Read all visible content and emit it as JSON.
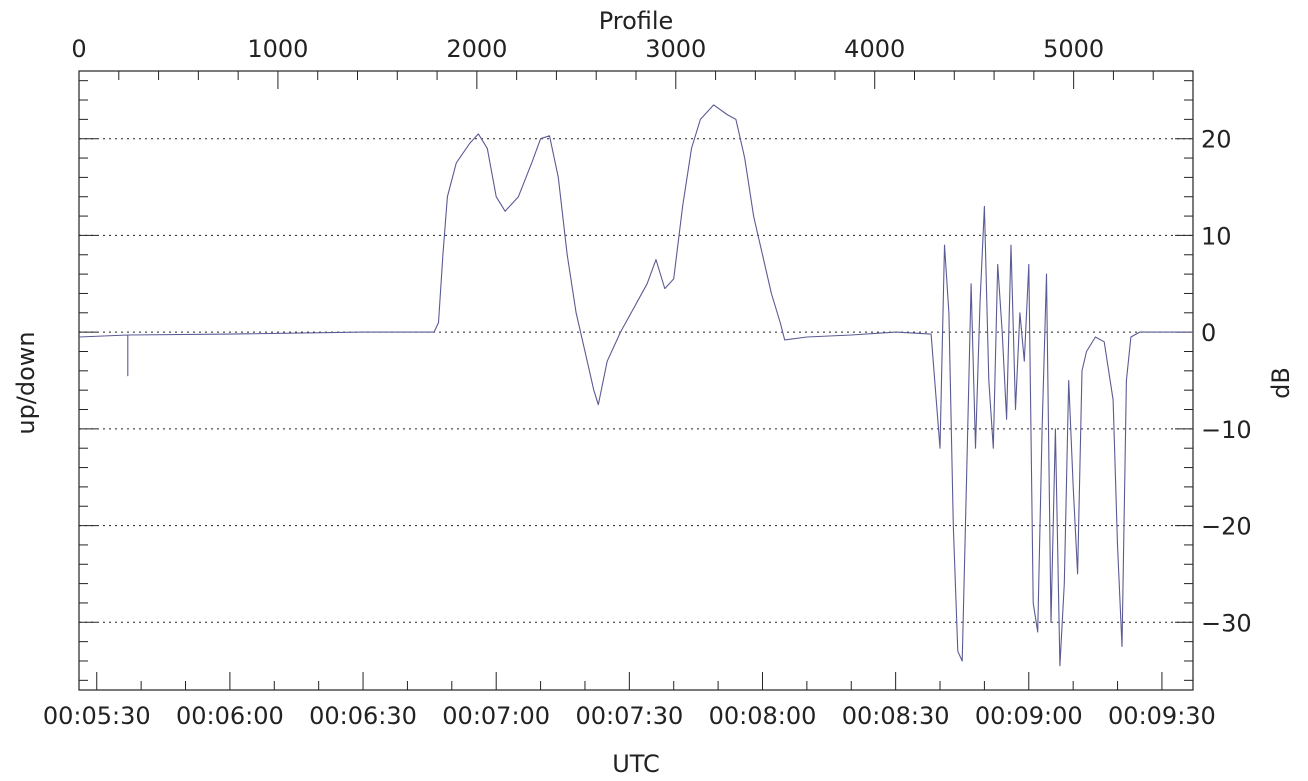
{
  "chart_data": {
    "type": "line",
    "title": "",
    "xlabel": "UTC",
    "ylabel": "up/down",
    "y2label": "dB",
    "top_axis_label": "Profile",
    "top_ticks": [
      "0",
      "1000",
      "2000",
      "3000",
      "4000",
      "5000"
    ],
    "top_xlim": [
      0,
      5600
    ],
    "x_ticks": [
      "00:05:30",
      "00:06:00",
      "00:06:30",
      "00:07:00",
      "00:07:30",
      "00:08:00",
      "00:08:30",
      "00:09:00",
      "00:09:30"
    ],
    "xlim": [
      "00:05:26",
      "00:09:37"
    ],
    "y_ticks": [
      "20",
      "10",
      "0",
      "−10",
      "−20",
      "−30"
    ],
    "ylim": [
      -37,
      27
    ],
    "grid": "horizontal dotted at y ticks",
    "series": [
      {
        "color": "#5b5b94",
        "points": [
          [
            "00:05:26",
            -0.5
          ],
          [
            "00:05:37",
            -0.3
          ],
          [
            "00:05:37",
            -4.5
          ],
          [
            "00:05:37",
            -0.3
          ],
          [
            "00:06:00",
            -0.2
          ],
          [
            "00:06:30",
            0.0
          ],
          [
            "00:06:46",
            0.0
          ],
          [
            "00:06:47",
            1.0
          ],
          [
            "00:06:48",
            8.0
          ],
          [
            "00:06:49",
            14.0
          ],
          [
            "00:06:51",
            17.5
          ],
          [
            "00:06:54",
            19.5
          ],
          [
            "00:06:56",
            20.5
          ],
          [
            "00:06:58",
            19.0
          ],
          [
            "00:07:00",
            14.0
          ],
          [
            "00:07:02",
            12.5
          ],
          [
            "00:07:05",
            14.0
          ],
          [
            "00:07:08",
            17.5
          ],
          [
            "00:07:10",
            20.0
          ],
          [
            "00:07:12",
            20.3
          ],
          [
            "00:07:14",
            16.0
          ],
          [
            "00:07:16",
            8.0
          ],
          [
            "00:07:18",
            2.0
          ],
          [
            "00:07:20",
            -2.0
          ],
          [
            "00:07:22",
            -6.0
          ],
          [
            "00:07:23",
            -7.5
          ],
          [
            "00:07:25",
            -3.0
          ],
          [
            "00:07:28",
            0.0
          ],
          [
            "00:07:31",
            2.5
          ],
          [
            "00:07:34",
            5.0
          ],
          [
            "00:07:36",
            7.5
          ],
          [
            "00:07:38",
            4.5
          ],
          [
            "00:07:40",
            5.5
          ],
          [
            "00:07:42",
            13.0
          ],
          [
            "00:07:44",
            19.0
          ],
          [
            "00:07:46",
            22.0
          ],
          [
            "00:07:49",
            23.5
          ],
          [
            "00:07:52",
            22.5
          ],
          [
            "00:07:54",
            22.0
          ],
          [
            "00:07:56",
            18.0
          ],
          [
            "00:07:58",
            12.0
          ],
          [
            "00:08:00",
            8.0
          ],
          [
            "00:08:02",
            4.0
          ],
          [
            "00:08:04",
            1.0
          ],
          [
            "00:08:05",
            -0.8
          ],
          [
            "00:08:10",
            -0.5
          ],
          [
            "00:08:20",
            -0.3
          ],
          [
            "00:08:30",
            0.0
          ],
          [
            "00:08:38",
            -0.2
          ],
          [
            "00:08:40",
            -12.0
          ],
          [
            "00:08:41",
            9.0
          ],
          [
            "00:08:42",
            2.0
          ],
          [
            "00:08:43",
            -20.0
          ],
          [
            "00:08:44",
            -33.0
          ],
          [
            "00:08:45",
            -34.0
          ],
          [
            "00:08:46",
            -15.0
          ],
          [
            "00:08:47",
            5.0
          ],
          [
            "00:08:48",
            -12.0
          ],
          [
            "00:08:49",
            3.0
          ],
          [
            "00:08:50",
            13.0
          ],
          [
            "00:08:51",
            -5.0
          ],
          [
            "00:08:52",
            -12.0
          ],
          [
            "00:08:53",
            7.0
          ],
          [
            "00:08:54",
            0.0
          ],
          [
            "00:08:55",
            -9.0
          ],
          [
            "00:08:56",
            9.0
          ],
          [
            "00:08:57",
            -8.0
          ],
          [
            "00:08:58",
            2.0
          ],
          [
            "00:08:59",
            -3.0
          ],
          [
            "00:09:00",
            7.0
          ],
          [
            "00:09:01",
            -28.0
          ],
          [
            "00:09:02",
            -31.0
          ],
          [
            "00:09:03",
            -10.0
          ],
          [
            "00:09:04",
            6.0
          ],
          [
            "00:09:05",
            -30.0
          ],
          [
            "00:09:06",
            -10.0
          ],
          [
            "00:09:07",
            -34.5
          ],
          [
            "00:09:08",
            -26.0
          ],
          [
            "00:09:09",
            -5.0
          ],
          [
            "00:09:10",
            -16.0
          ],
          [
            "00:09:11",
            -25.0
          ],
          [
            "00:09:12",
            -4.0
          ],
          [
            "00:09:13",
            -2.0
          ],
          [
            "00:09:15",
            -0.5
          ],
          [
            "00:09:17",
            -1.0
          ],
          [
            "00:09:19",
            -7.0
          ],
          [
            "00:09:20",
            -22.0
          ],
          [
            "00:09:21",
            -32.5
          ],
          [
            "00:09:22",
            -5.0
          ],
          [
            "00:09:23",
            -0.5
          ],
          [
            "00:09:25",
            0.0
          ],
          [
            "00:09:30",
            0.0
          ],
          [
            "00:09:37",
            0.0
          ]
        ]
      }
    ]
  }
}
